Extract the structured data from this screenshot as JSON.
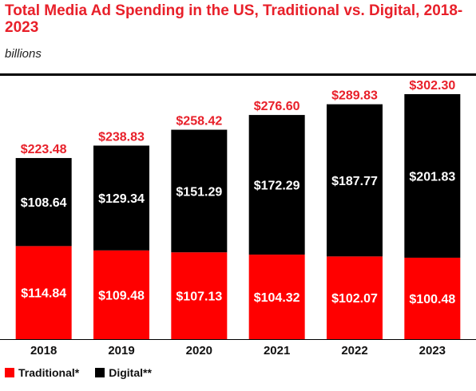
{
  "title": "Total Media Ad Spending in the US, Traditional vs. Digital, 2018-2023",
  "subtitle": "billions",
  "colors": {
    "traditional": "#ff0000",
    "digital": "#000000",
    "accent": "#e8202a"
  },
  "legend": [
    {
      "name": "Traditional*",
      "color": "#ff0000"
    },
    {
      "name": "Digital**",
      "color": "#000000"
    }
  ],
  "chart_data": {
    "type": "bar",
    "stacked": true,
    "title": "Total Media Ad Spending in the US, Traditional vs. Digital, 2018-2023",
    "subtitle": "billions",
    "categories": [
      "2018",
      "2019",
      "2020",
      "2021",
      "2022",
      "2023"
    ],
    "series": [
      {
        "name": "Traditional*",
        "color": "#ff0000",
        "values": [
          114.84,
          109.48,
          107.13,
          104.32,
          102.07,
          100.48
        ],
        "labels": [
          "$114.84",
          "$109.48",
          "$107.13",
          "$104.32",
          "$102.07",
          "$100.48"
        ]
      },
      {
        "name": "Digital**",
        "color": "#000000",
        "values": [
          108.64,
          129.34,
          151.29,
          172.29,
          187.77,
          201.83
        ],
        "labels": [
          "$108.64",
          "$129.34",
          "$151.29",
          "$172.29",
          "$187.77",
          "$201.83"
        ]
      }
    ],
    "totals": [
      223.48,
      238.83,
      258.42,
      276.6,
      289.83,
      302.3
    ],
    "total_labels": [
      "$223.48",
      "$238.83",
      "$258.42",
      "$276.60",
      "$289.83",
      "$302.30"
    ],
    "ylim": [
      0,
      302.3
    ],
    "grid": false,
    "legend_position": "bottom-left"
  }
}
